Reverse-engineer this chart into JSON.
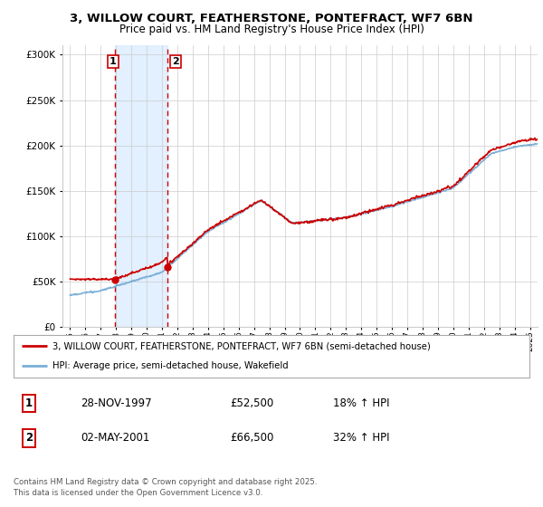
{
  "title_line1": "3, WILLOW COURT, FEATHERSTONE, PONTEFRACT, WF7 6BN",
  "title_line2": "Price paid vs. HM Land Registry's House Price Index (HPI)",
  "bg_color": "#ffffff",
  "plot_bg_color": "#ffffff",
  "grid_color": "#cccccc",
  "sale1_date_num": 1997.91,
  "sale1_price": 52500,
  "sale1_label": "1",
  "sale2_date_num": 2001.34,
  "sale2_price": 66500,
  "sale2_label": "2",
  "legend_label_red": "3, WILLOW COURT, FEATHERSTONE, PONTEFRACT, WF7 6BN (semi-detached house)",
  "legend_label_blue": "HPI: Average price, semi-detached house, Wakefield",
  "table_row1": [
    "1",
    "28-NOV-1997",
    "£52,500",
    "18% ↑ HPI"
  ],
  "table_row2": [
    "2",
    "02-MAY-2001",
    "£66,500",
    "32% ↑ HPI"
  ],
  "footer": "Contains HM Land Registry data © Crown copyright and database right 2025.\nThis data is licensed under the Open Government Licence v3.0.",
  "ylim": [
    0,
    310000
  ],
  "xlim_start": 1994.5,
  "xlim_end": 2025.5,
  "red_color": "#cc0000",
  "blue_color": "#7aaed6",
  "shaded_color": "#ddeeff"
}
